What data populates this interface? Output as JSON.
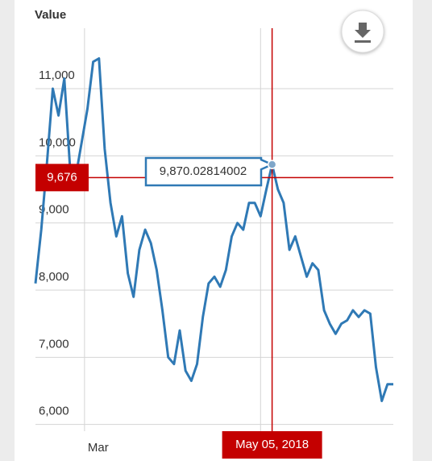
{
  "chart_data": {
    "type": "line",
    "title": "Value",
    "x": [
      "2018-02-12",
      "2018-02-14",
      "2018-02-16",
      "2018-02-18",
      "2018-02-20",
      "2018-02-22",
      "2018-02-24",
      "2018-02-26",
      "2018-02-28",
      "2018-03-02",
      "2018-03-04",
      "2018-03-06",
      "2018-03-08",
      "2018-03-10",
      "2018-03-12",
      "2018-03-14",
      "2018-03-16",
      "2018-03-18",
      "2018-03-20",
      "2018-03-22",
      "2018-03-24",
      "2018-03-26",
      "2018-03-28",
      "2018-03-30",
      "2018-04-01",
      "2018-04-03",
      "2018-04-05",
      "2018-04-07",
      "2018-04-09",
      "2018-04-11",
      "2018-04-13",
      "2018-04-15",
      "2018-04-17",
      "2018-04-19",
      "2018-04-21",
      "2018-04-23",
      "2018-04-25",
      "2018-04-27",
      "2018-04-29",
      "2018-05-01",
      "2018-05-03",
      "2018-05-05",
      "2018-05-07",
      "2018-05-09",
      "2018-05-11",
      "2018-05-13",
      "2018-05-15",
      "2018-05-17",
      "2018-05-19",
      "2018-05-21",
      "2018-05-23",
      "2018-05-25",
      "2018-05-27",
      "2018-05-29",
      "2018-05-31",
      "2018-06-02",
      "2018-06-04",
      "2018-06-06",
      "2018-06-08",
      "2018-06-10",
      "2018-06-12",
      "2018-06-14",
      "2018-06-16"
    ],
    "series": [
      {
        "color": "#2f79b5",
        "values": [
          8100,
          8900,
          9900,
          11000,
          10600,
          11150,
          9800,
          9700,
          10200,
          10700,
          11400,
          11450,
          10100,
          9300,
          8800,
          9100,
          8250,
          7900,
          8600,
          8900,
          8700,
          8300,
          7700,
          7000,
          6900,
          7400,
          6800,
          6650,
          6900,
          7600,
          8100,
          8200,
          8050,
          8300,
          8800,
          9000,
          8900,
          9300,
          9300,
          9100,
          9500,
          9870.02814002,
          9500,
          9300,
          8600,
          8800,
          8500,
          8200,
          8400,
          8300,
          7700,
          7500,
          7350,
          7500,
          7550,
          7700,
          7600,
          7700,
          7650,
          6850,
          6350,
          6600,
          6600
        ]
      }
    ],
    "xlim": [
      "2018-02-12",
      "2018-06-16"
    ],
    "xticks": [
      {
        "value": "2018-03-01",
        "label": "Mar"
      },
      {
        "value": "2018-05-01",
        "label": null
      }
    ],
    "ylim": [
      5900,
      11900
    ],
    "yticks": [
      {
        "value": 6000,
        "label": "6,000"
      },
      {
        "value": 7000,
        "label": "7,000"
      },
      {
        "value": 8000,
        "label": "8,000"
      },
      {
        "value": 9000,
        "label": "9,000"
      },
      {
        "value": 10000,
        "label": "10,000"
      },
      {
        "value": 11000,
        "label": "11,000"
      }
    ],
    "grid": true,
    "highlight": {
      "index": 41,
      "tooltip": "9,870.02814002"
    },
    "crosshair": {
      "x": {
        "value": "2018-05-05",
        "label": "May 05, 2018"
      },
      "y": {
        "value": 9676,
        "label": "9,676"
      },
      "color": "#c40000"
    }
  }
}
